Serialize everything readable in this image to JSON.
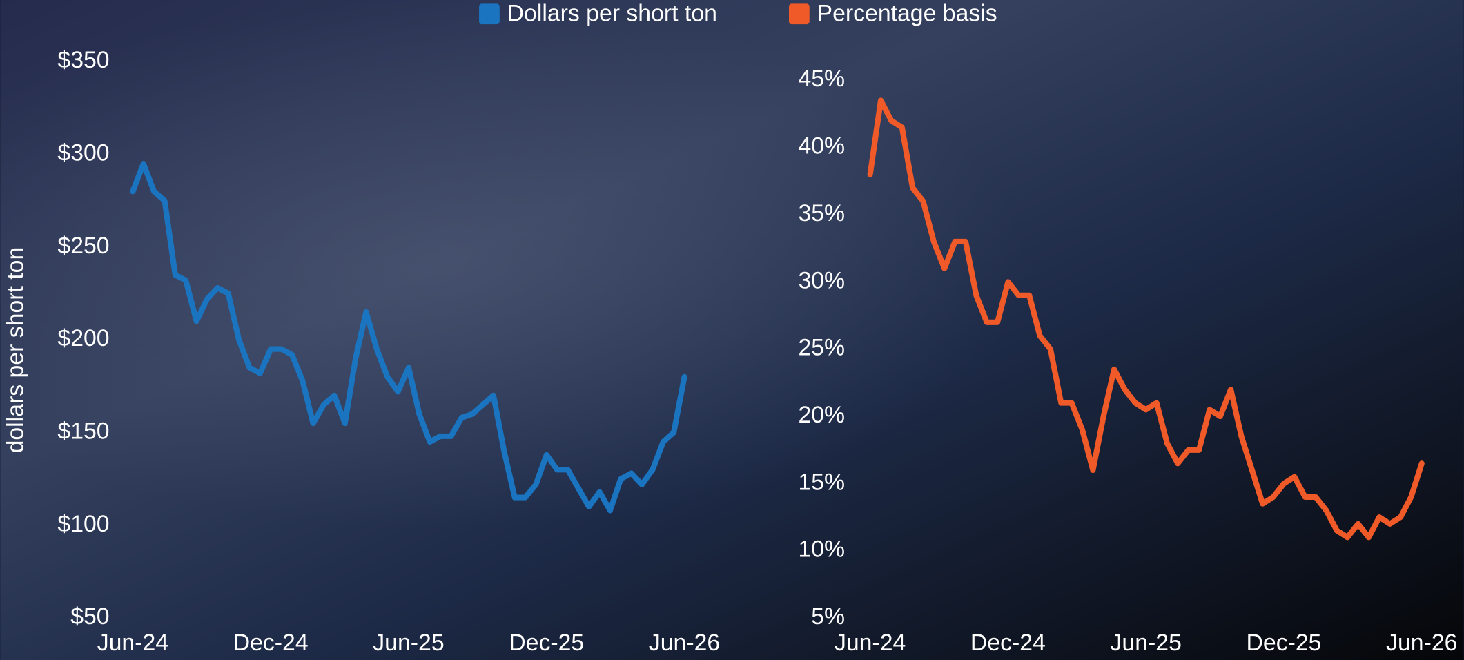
{
  "chart_data": [
    {
      "type": "line",
      "ylabel": "dollars per short ton",
      "categories": [
        "Jun-24",
        null,
        null,
        null,
        null,
        null,
        null,
        null,
        null,
        null,
        null,
        null,
        null,
        "Dec-24",
        null,
        null,
        null,
        null,
        null,
        null,
        null,
        null,
        null,
        null,
        null,
        null,
        "Jun-25",
        null,
        null,
        null,
        null,
        null,
        null,
        null,
        null,
        null,
        null,
        null,
        null,
        "Dec-25",
        null,
        null,
        null,
        null,
        null,
        null,
        null,
        null,
        null,
        null,
        null,
        null,
        "Jun-26"
      ],
      "series": [
        {
          "name": "Dollars per short ton",
          "color": "#1a74c0",
          "values": [
            280,
            295,
            280,
            275,
            235,
            232,
            210,
            222,
            228,
            225,
            200,
            185,
            182,
            195,
            195,
            192,
            178,
            155,
            165,
            170,
            155,
            190,
            215,
            195,
            180,
            172,
            185,
            160,
            145,
            148,
            148,
            158,
            160,
            165,
            170,
            140,
            115,
            115,
            122,
            138,
            130,
            130,
            120,
            110,
            118,
            108,
            125,
            128,
            122,
            130,
            145,
            150,
            180
          ]
        }
      ],
      "ylim": [
        50,
        350
      ],
      "yticks": [
        {
          "value": 50,
          "label": "$50"
        },
        {
          "value": 100,
          "label": "$100"
        },
        {
          "value": 150,
          "label": "$150"
        },
        {
          "value": 200,
          "label": "$200"
        },
        {
          "value": 250,
          "label": "$250"
        },
        {
          "value": 300,
          "label": "$300"
        },
        {
          "value": 350,
          "label": "$350"
        }
      ],
      "grid": false
    },
    {
      "type": "line",
      "categories": [
        "Jun-24",
        null,
        null,
        null,
        null,
        null,
        null,
        null,
        null,
        null,
        null,
        null,
        null,
        "Dec-24",
        null,
        null,
        null,
        null,
        null,
        null,
        null,
        null,
        null,
        null,
        null,
        null,
        "Jun-25",
        null,
        null,
        null,
        null,
        null,
        null,
        null,
        null,
        null,
        null,
        null,
        null,
        "Dec-25",
        null,
        null,
        null,
        null,
        null,
        null,
        null,
        null,
        null,
        null,
        null,
        null,
        "Jun-26"
      ],
      "series": [
        {
          "name": "Percentage basis",
          "color": "#f05a28",
          "values": [
            38,
            43.5,
            42,
            41.5,
            37,
            36,
            33,
            31,
            33,
            33,
            29,
            27,
            27,
            30,
            29,
            29,
            26,
            25,
            21,
            21,
            19,
            16,
            20,
            23.5,
            22,
            21,
            20.5,
            21,
            18,
            16.5,
            17.5,
            17.5,
            20.5,
            20,
            22,
            18.5,
            16,
            13.5,
            14,
            15,
            15.5,
            14,
            14,
            13,
            11.5,
            11,
            12,
            11,
            12.5,
            12,
            12.5,
            14,
            16.5
          ]
        }
      ],
      "ylim": [
        5,
        45
      ],
      "yticks": [
        {
          "value": 5,
          "label": "5%"
        },
        {
          "value": 10,
          "label": "10%"
        },
        {
          "value": 15,
          "label": "15%"
        },
        {
          "value": 20,
          "label": "20%"
        },
        {
          "value": 25,
          "label": "25%"
        },
        {
          "value": 30,
          "label": "30%"
        },
        {
          "value": 35,
          "label": "35%"
        },
        {
          "value": 40,
          "label": "40%"
        },
        {
          "value": 45,
          "label": "45%"
        }
      ],
      "grid": false
    }
  ]
}
